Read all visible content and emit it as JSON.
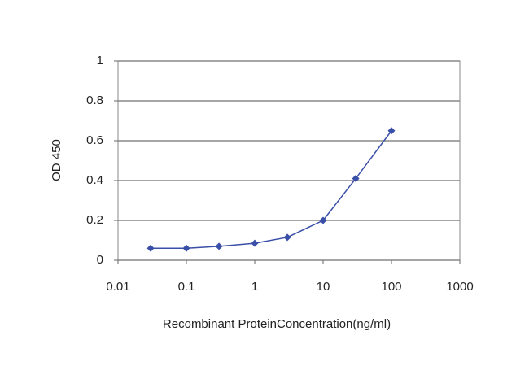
{
  "chart_data": {
    "type": "line",
    "xlabel": "Recombinant ProteinConcentration(ng/ml)",
    "ylabel": "OD 450",
    "x": [
      0.03,
      0.1,
      0.3,
      1,
      3,
      10,
      30,
      100
    ],
    "values": [
      0.06,
      0.06,
      0.07,
      0.085,
      0.115,
      0.2,
      0.41,
      0.65
    ],
    "color": "#3a4fa8",
    "xscale": "log",
    "xlim": [
      0.01,
      1000
    ],
    "xticks": [
      0.01,
      0.1,
      1,
      10,
      100,
      1000
    ],
    "ylim": [
      0,
      1
    ],
    "yticks": [
      0,
      0.2,
      0.4,
      0.6,
      0.8,
      1
    ],
    "grid": true
  }
}
